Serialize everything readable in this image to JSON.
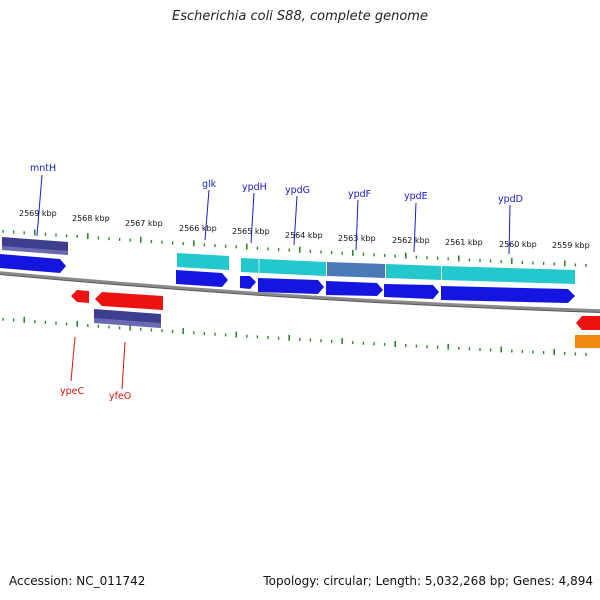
{
  "title": "Escherichia coli S88, complete genome",
  "accession": "Accession: NC_011742",
  "topology": "Topology: circular; Length: 5,032,268 bp; Genes: 4,894",
  "colors": {
    "backbone": "#8a8a8a",
    "tick": "#2a8a2a",
    "label_top": "#1a1acc",
    "label_bottom": "#dd1111",
    "cds_blue": "#1515e0",
    "cds_cyan": "#22c8cc",
    "cds_navy": "#3e3e8e",
    "cds_red": "#ee1111",
    "cds_orange": "#f08a10",
    "cds_steel": "#4a7ab8"
  },
  "kbp_labels": [
    "2569 kbp",
    "2568 kbp",
    "2567 kbp",
    "2566 kbp",
    "2565 kbp",
    "2564 kbp",
    "2563 kbp",
    "2562 kbp",
    "2561 kbp",
    "2560 kbp",
    "2559 kbp"
  ],
  "genes_top": [
    "mntH",
    "glk",
    "ypdH",
    "ypdG",
    "ypdF",
    "ypdE",
    "ypdD"
  ],
  "genes_bottom": [
    "ypeC",
    "yfeO"
  ]
}
